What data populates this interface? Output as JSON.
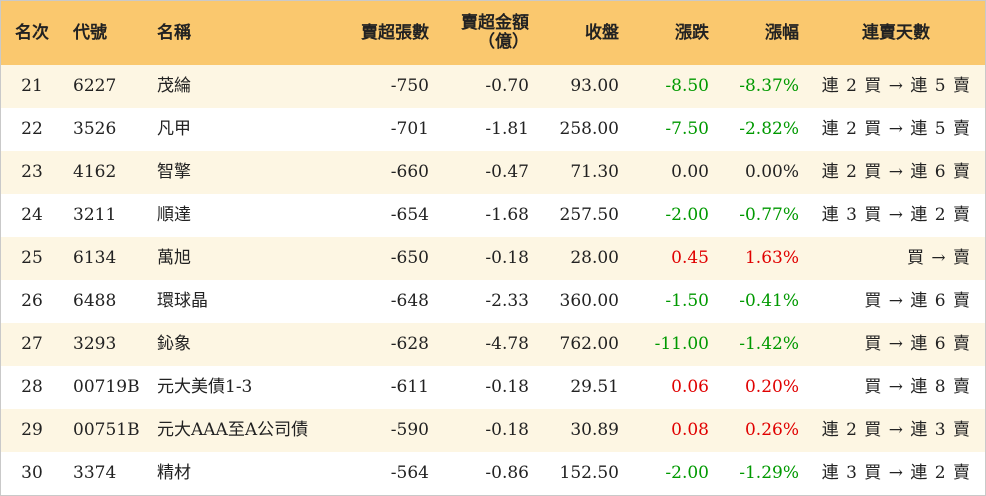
{
  "header": {
    "rank": "名次",
    "code": "代號",
    "name": "名稱",
    "net_sell_lots": "賣超張數",
    "net_sell_amount_line1": "賣超金額",
    "net_sell_amount_line2": "（億）",
    "close": "收盤",
    "change": "漲跌",
    "change_pct": "漲幅",
    "streak": "連賣天數"
  },
  "rows": [
    {
      "rank": "21",
      "code": "6227",
      "name": "茂綸",
      "lots": "-750",
      "amount": "-0.70",
      "close": "93.00",
      "change": "-8.50",
      "pct": "-8.37%",
      "dir": "down",
      "streak": "連 2 買 → 連 5 賣"
    },
    {
      "rank": "22",
      "code": "3526",
      "name": "凡甲",
      "lots": "-701",
      "amount": "-1.81",
      "close": "258.00",
      "change": "-7.50",
      "pct": "-2.82%",
      "dir": "down",
      "streak": "連 2 買 → 連 5 賣"
    },
    {
      "rank": "23",
      "code": "4162",
      "name": "智擎",
      "lots": "-660",
      "amount": "-0.47",
      "close": "71.30",
      "change": "0.00",
      "pct": "0.00%",
      "dir": "zero",
      "streak": "連 2 買 → 連 6 賣"
    },
    {
      "rank": "24",
      "code": "3211",
      "name": "順達",
      "lots": "-654",
      "amount": "-1.68",
      "close": "257.50",
      "change": "-2.00",
      "pct": "-0.77%",
      "dir": "down",
      "streak": "連 3 買 → 連 2 賣"
    },
    {
      "rank": "25",
      "code": "6134",
      "name": "萬旭",
      "lots": "-650",
      "amount": "-0.18",
      "close": "28.00",
      "change": "0.45",
      "pct": "1.63%",
      "dir": "up",
      "streak": "買 → 賣"
    },
    {
      "rank": "26",
      "code": "6488",
      "name": "環球晶",
      "lots": "-648",
      "amount": "-2.33",
      "close": "360.00",
      "change": "-1.50",
      "pct": "-0.41%",
      "dir": "down",
      "streak": "買 → 連 6 賣"
    },
    {
      "rank": "27",
      "code": "3293",
      "name": "鈊象",
      "lots": "-628",
      "amount": "-4.78",
      "close": "762.00",
      "change": "-11.00",
      "pct": "-1.42%",
      "dir": "down",
      "streak": "買 → 連 6 賣"
    },
    {
      "rank": "28",
      "code": "00719B",
      "name": "元大美債1-3",
      "lots": "-611",
      "amount": "-0.18",
      "close": "29.51",
      "change": "0.06",
      "pct": "0.20%",
      "dir": "up",
      "streak": "買 → 連 8 賣"
    },
    {
      "rank": "29",
      "code": "00751B",
      "name": "元大AAA至A公司債",
      "lots": "-590",
      "amount": "-0.18",
      "close": "30.89",
      "change": "0.08",
      "pct": "0.26%",
      "dir": "up",
      "streak": "連 2 買 → 連 3 賣"
    },
    {
      "rank": "30",
      "code": "3374",
      "name": "精材",
      "lots": "-564",
      "amount": "-0.86",
      "close": "152.50",
      "change": "-2.00",
      "pct": "-1.29%",
      "dir": "down",
      "streak": "連 3 買 → 連 2 賣"
    }
  ],
  "colors": {
    "header_bg": "#fac86e",
    "row_alt_bg": "#fdf6e3",
    "up": "#e00000",
    "down": "#009900"
  }
}
